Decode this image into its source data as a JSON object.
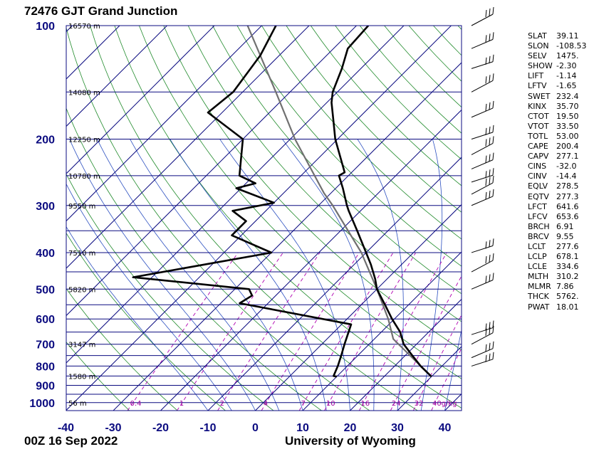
{
  "title": "72476 GJT Grand Junction",
  "footer_date": "00Z 16 Sep 2022",
  "footer_source": "University of Wyoming",
  "colors": {
    "frame": "#0b0b80",
    "isotherm": "#0b0b80",
    "dry_adiabat": "#1f8a2a",
    "moist_adiabat": "#2b4fc0",
    "mixing_ratio": "#b000b0",
    "sounding": "#000000",
    "parcel": "#707070",
    "pressure_label": "#0b0b80",
    "mixing_label": "#a000a0"
  },
  "indices": [
    {
      "name": "SLAT",
      "value": "39.11"
    },
    {
      "name": "SLON",
      "value": "-108.53"
    },
    {
      "name": "SELV",
      "value": "1475."
    },
    {
      "name": "SHOW",
      "value": "-2.30"
    },
    {
      "name": "LIFT",
      "value": "-1.14"
    },
    {
      "name": "LFTV",
      "value": "-1.65"
    },
    {
      "name": "SWET",
      "value": "232.4"
    },
    {
      "name": "KINX",
      "value": "35.70"
    },
    {
      "name": "CTOT",
      "value": "19.50"
    },
    {
      "name": "VTOT",
      "value": "33.50"
    },
    {
      "name": "TOTL",
      "value": "53.00"
    },
    {
      "name": "CAPE",
      "value": "200.4"
    },
    {
      "name": "CAPV",
      "value": "277.1"
    },
    {
      "name": "CINS",
      "value": "-32.0"
    },
    {
      "name": "CINV",
      "value": "-14.4"
    },
    {
      "name": "EQLV",
      "value": "278.5"
    },
    {
      "name": "EQTV",
      "value": "277.3"
    },
    {
      "name": "LFCT",
      "value": "641.6"
    },
    {
      "name": "LFCV",
      "value": "653.6"
    },
    {
      "name": "BRCH",
      "value": "6.91"
    },
    {
      "name": "BRCV",
      "value": "9.55"
    },
    {
      "name": "LCLT",
      "value": "277.6"
    },
    {
      "name": "LCLP",
      "value": "678.1"
    },
    {
      "name": "LCLE",
      "value": "334.6"
    },
    {
      "name": "MLTH",
      "value": "310.2"
    },
    {
      "name": "MLMR",
      "value": "7.86"
    },
    {
      "name": "THCK",
      "value": "5762."
    },
    {
      "name": "PWAT",
      "value": "18.01"
    }
  ],
  "chart_data": {
    "type": "skew-t",
    "pressure_ticks": [
      100,
      200,
      300,
      400,
      500,
      600,
      700,
      800,
      900,
      1000
    ],
    "temperature_ticks": [
      -40,
      -30,
      -20,
      -10,
      0,
      10,
      20,
      30,
      40
    ],
    "xlim": [
      -40,
      45
    ],
    "ylim": [
      1050,
      100
    ],
    "height_labels": [
      {
        "p": 100,
        "label": "16570 m"
      },
      {
        "p": 150,
        "label": "14080 m"
      },
      {
        "p": 200,
        "label": "12250 m"
      },
      {
        "p": 250,
        "label": "10780 m"
      },
      {
        "p": 300,
        "label": "9550 m"
      },
      {
        "p": 400,
        "label": "7510 m"
      },
      {
        "p": 500,
        "label": "5820 m"
      },
      {
        "p": 700,
        "label": "3147 m"
      },
      {
        "p": 850,
        "label": "1580 m"
      },
      {
        "p": 1000,
        "label": "56 m"
      }
    ],
    "mixing_ratio_labels": [
      "0.4",
      "1",
      "2",
      "4",
      "7",
      "10",
      "16",
      "24",
      "32",
      "40g/kg"
    ],
    "mixing_ratio_values": [
      0.4,
      1,
      2,
      4,
      7,
      10,
      16,
      24,
      32,
      40
    ],
    "temperature": [
      {
        "p": 853,
        "t": 30.0
      },
      {
        "p": 800,
        "t": 25.5
      },
      {
        "p": 750,
        "t": 21.5
      },
      {
        "p": 700,
        "t": 17.3
      },
      {
        "p": 650,
        "t": 14.0
      },
      {
        "p": 600,
        "t": 9.5
      },
      {
        "p": 550,
        "t": 5.0
      },
      {
        "p": 500,
        "t": 0.0
      },
      {
        "p": 470,
        "t": -2.5
      },
      {
        "p": 430,
        "t": -6.5
      },
      {
        "p": 400,
        "t": -10.0
      },
      {
        "p": 350,
        "t": -16.5
      },
      {
        "p": 310,
        "t": -22.5
      },
      {
        "p": 300,
        "t": -24.0
      },
      {
        "p": 270,
        "t": -28.5
      },
      {
        "p": 250,
        "t": -32.0
      },
      {
        "p": 245,
        "t": -31.5
      },
      {
        "p": 200,
        "t": -40.5
      },
      {
        "p": 180,
        "t": -44.5
      },
      {
        "p": 160,
        "t": -49.0
      },
      {
        "p": 150,
        "t": -51.0
      },
      {
        "p": 130,
        "t": -54.0
      },
      {
        "p": 115,
        "t": -57.0
      },
      {
        "p": 100,
        "t": -57.5
      }
    ],
    "dewpoint": [
      {
        "p": 853,
        "t": 10.0
      },
      {
        "p": 850,
        "t": 9.2
      },
      {
        "p": 800,
        "t": 8.0
      },
      {
        "p": 750,
        "t": 6.5
      },
      {
        "p": 700,
        "t": 4.8
      },
      {
        "p": 620,
        "t": 2.0
      },
      {
        "p": 545,
        "t": -26.0
      },
      {
        "p": 520,
        "t": -25.0
      },
      {
        "p": 500,
        "t": -27.0
      },
      {
        "p": 465,
        "t": -54.0
      },
      {
        "p": 400,
        "t": -30.0
      },
      {
        "p": 360,
        "t": -42.0
      },
      {
        "p": 330,
        "t": -42.0
      },
      {
        "p": 310,
        "t": -47.0
      },
      {
        "p": 295,
        "t": -40.0
      },
      {
        "p": 270,
        "t": -51.0
      },
      {
        "p": 262,
        "t": -48.0
      },
      {
        "p": 250,
        "t": -53.0
      },
      {
        "p": 200,
        "t": -60.0
      },
      {
        "p": 170,
        "t": -73.0
      },
      {
        "p": 150,
        "t": -72.0
      },
      {
        "p": 120,
        "t": -74.0
      },
      {
        "p": 100,
        "t": -77.0
      }
    ],
    "parcel": [
      {
        "p": 853,
        "t": 30.0
      },
      {
        "p": 678,
        "t": 14.0
      },
      {
        "p": 600,
        "t": 8.7
      },
      {
        "p": 500,
        "t": 0.0
      },
      {
        "p": 400,
        "t": -11.0
      },
      {
        "p": 300,
        "t": -27.0
      },
      {
        "p": 278,
        "t": -31.5
      },
      {
        "p": 200,
        "t": -49.0
      },
      {
        "p": 150,
        "t": -63.0
      },
      {
        "p": 100,
        "t": -83.0
      }
    ],
    "wind_levels": [
      100,
      115,
      130,
      150,
      175,
      200,
      220,
      240,
      260,
      280,
      300,
      400,
      450,
      500,
      660,
      700,
      760,
      800
    ]
  }
}
